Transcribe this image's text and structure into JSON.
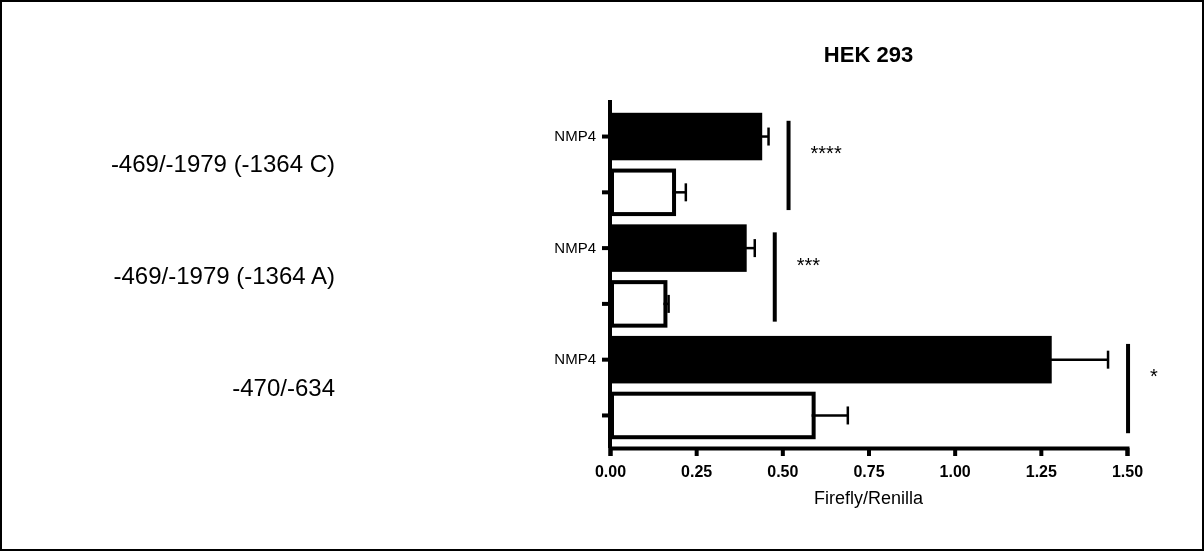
{
  "chart_data": {
    "type": "bar",
    "orientation": "horizontal",
    "title": "HEK 293",
    "xlabel": "Firefly/Renilla",
    "categories": [
      "NMP4",
      null,
      "NMP4",
      null,
      "NMP4",
      null
    ],
    "values": [
      0.43,
      0.18,
      0.385,
      0.155,
      1.27,
      0.585
    ],
    "errors": [
      0.03,
      0.04,
      0.035,
      0.015,
      0.175,
      0.105
    ],
    "colors": [
      "#000000",
      "#ffffff",
      "#000000",
      "#ffffff",
      "#000000",
      "#ffffff"
    ],
    "xlim": [
      0,
      1.5
    ],
    "xticks": [
      {
        "value": 0,
        "label": "0.00"
      },
      {
        "value": 0.25,
        "label": "0.25"
      },
      {
        "value": 0.5,
        "label": "0.50"
      },
      {
        "value": 0.75,
        "label": "0.75"
      },
      {
        "value": 1,
        "label": "1.00"
      },
      {
        "value": 1.25,
        "label": "1.25"
      },
      {
        "value": 1.5,
        "label": "1.50"
      }
    ],
    "annotations": [
      "-469/-1979 (-1364 C)",
      "-469/-1979 (-1364 A)",
      "-470/-634",
      "****",
      "***",
      "*"
    ],
    "grid": false
  }
}
